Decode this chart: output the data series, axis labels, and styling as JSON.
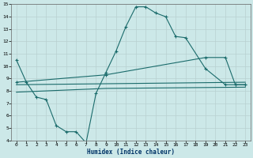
{
  "xlabel": "Humidex (Indice chaleur)",
  "bg_color": "#cce8e8",
  "grid_color": "#b0c8c8",
  "line_color": "#1a6b6b",
  "xlim": [
    -0.5,
    23.5
  ],
  "ylim": [
    4,
    15
  ],
  "xticks": [
    0,
    1,
    2,
    3,
    4,
    5,
    6,
    7,
    8,
    9,
    10,
    11,
    12,
    13,
    14,
    15,
    16,
    17,
    18,
    19,
    20,
    21,
    22,
    23
  ],
  "yticks": [
    4,
    5,
    6,
    7,
    8,
    9,
    10,
    11,
    12,
    13,
    14,
    15
  ],
  "main_x": [
    0,
    1,
    2,
    3,
    4,
    5,
    6,
    7,
    8,
    9,
    10,
    11,
    12,
    13,
    14,
    15,
    16,
    17,
    19,
    21,
    22,
    23
  ],
  "main_y": [
    10.5,
    8.7,
    7.5,
    7.3,
    5.2,
    4.7,
    4.7,
    3.8,
    7.8,
    9.5,
    11.2,
    13.2,
    14.8,
    14.8,
    14.3,
    14.0,
    12.4,
    12.3,
    9.8,
    8.5,
    8.5,
    8.5
  ],
  "line2_x": [
    0,
    9,
    19,
    21,
    22,
    23
  ],
  "line2_y": [
    8.7,
    9.3,
    10.7,
    10.7,
    8.5,
    8.5
  ],
  "line3_x": [
    0,
    23
  ],
  "line3_y": [
    8.5,
    8.7
  ],
  "line4_x": [
    0,
    9,
    23
  ],
  "line4_y": [
    7.9,
    8.2,
    8.3
  ]
}
